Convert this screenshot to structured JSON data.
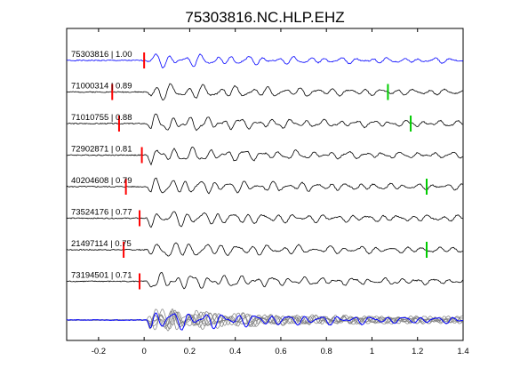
{
  "chart_data": {
    "type": "line",
    "title": "75303816.NC.HLP.EHZ",
    "xlabel": "",
    "ylabel": "",
    "xlim": [
      -0.34,
      1.4
    ],
    "x_ticks": [
      -0.2,
      0,
      0.2,
      0.4,
      0.6,
      0.8,
      1,
      1.2,
      1.4
    ],
    "x_tick_labels": [
      "-0.2",
      "0",
      "0.2",
      "0.4",
      "0.6",
      "0.8",
      "1",
      "1.2",
      "1.4"
    ],
    "grid": false,
    "traces": [
      {
        "label": "75303816 | 1.00",
        "color": "#0000ff",
        "p_pick": 0.0,
        "s_pick": null,
        "seed": 1
      },
      {
        "label": "71000314 | 0.89",
        "color": "#000000",
        "p_pick": -0.14,
        "s_pick": 1.07,
        "seed": 2
      },
      {
        "label": "71010755 | 0.88",
        "color": "#000000",
        "p_pick": -0.11,
        "s_pick": 1.17,
        "seed": 3
      },
      {
        "label": "72902871 | 0.81",
        "color": "#000000",
        "p_pick": -0.01,
        "s_pick": null,
        "seed": 4
      },
      {
        "label": "40204608 | 0.79",
        "color": "#000000",
        "p_pick": -0.08,
        "s_pick": 1.24,
        "seed": 5
      },
      {
        "label": "73524176 | 0.77",
        "color": "#000000",
        "p_pick": -0.02,
        "s_pick": null,
        "seed": 6
      },
      {
        "label": "21497114 | 0.75",
        "color": "#000000",
        "p_pick": -0.09,
        "s_pick": 1.24,
        "seed": 7
      },
      {
        "label": "73194501 | 0.71",
        "color": "#000000",
        "p_pick": -0.02,
        "s_pick": null,
        "seed": 8
      }
    ],
    "stack": {
      "reference_color": "#0000ff",
      "others_color": "#808080"
    },
    "pick_colors": {
      "p": "#ff0000",
      "s": "#00cc00"
    }
  }
}
